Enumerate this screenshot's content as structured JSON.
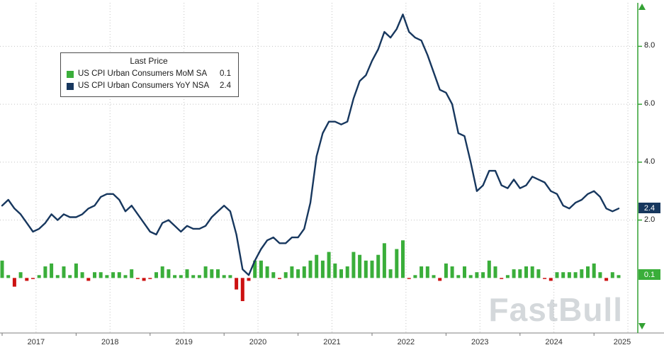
{
  "chart": {
    "legend": {
      "title": "Last Price",
      "entries": [
        {
          "label": "US CPI Urban Consumers MoM SA",
          "value": "0.1",
          "color": "#3aae3a"
        },
        {
          "label": "US CPI Urban Consumers YoY NSA",
          "value": "2.4",
          "color": "#17375e"
        }
      ]
    },
    "last_price_tags": [
      {
        "value": "2.4",
        "bg": "#17375e"
      },
      {
        "value": "0.1",
        "bg": "#3aae3a"
      }
    ],
    "watermark": "FastBull"
  },
  "chart_data": {
    "type": "mixed",
    "x_start": "2017-01",
    "x_freq": "monthly",
    "x_tick_labels": [
      "2017",
      "2018",
      "2019",
      "2020",
      "2021",
      "2022",
      "2023",
      "2024",
      "2025"
    ],
    "y_ticks": [
      "2.0",
      "4.0",
      "6.0",
      "8.0"
    ],
    "ylim": [
      -1.9,
      9.6
    ],
    "grid": "dotted",
    "grid_color": "#c4c4c4",
    "axis_color": "#33a133",
    "legend_position": "top-left",
    "series": [
      {
        "name": "US CPI Urban Consumers MoM SA",
        "type": "bar",
        "last": 0.1,
        "color": "#3aae3a",
        "negative_color": "#cc1111",
        "values": [
          0.6,
          0.1,
          -0.3,
          0.2,
          -0.1,
          0.0,
          0.1,
          0.4,
          0.5,
          0.1,
          0.4,
          0.1,
          0.5,
          0.2,
          -0.1,
          0.2,
          0.2,
          0.1,
          0.2,
          0.2,
          0.1,
          0.3,
          0.0,
          -0.1,
          0.0,
          0.2,
          0.4,
          0.3,
          0.1,
          0.1,
          0.3,
          0.1,
          0.1,
          0.4,
          0.3,
          0.3,
          0.1,
          0.1,
          -0.4,
          -0.8,
          -0.1,
          0.6,
          0.6,
          0.4,
          0.2,
          0.0,
          0.2,
          0.4,
          0.3,
          0.4,
          0.6,
          0.8,
          0.6,
          0.9,
          0.5,
          0.3,
          0.4,
          0.9,
          0.8,
          0.6,
          0.6,
          0.8,
          1.2,
          0.3,
          1.0,
          1.3,
          0.0,
          0.1,
          0.4,
          0.4,
          0.1,
          -0.1,
          0.5,
          0.4,
          0.1,
          0.4,
          0.1,
          0.2,
          0.2,
          0.6,
          0.4,
          0.0,
          0.1,
          0.3,
          0.3,
          0.4,
          0.4,
          0.3,
          0.0,
          -0.1,
          0.2,
          0.2,
          0.2,
          0.2,
          0.3,
          0.4,
          0.5,
          0.2,
          -0.1,
          0.2,
          0.1
        ]
      },
      {
        "name": "US CPI Urban Consumers YoY NSA",
        "type": "line",
        "last": 2.4,
        "color": "#17375e",
        "values": [
          2.5,
          2.7,
          2.4,
          2.2,
          1.9,
          1.6,
          1.7,
          1.9,
          2.2,
          2.0,
          2.2,
          2.1,
          2.1,
          2.2,
          2.4,
          2.5,
          2.8,
          2.9,
          2.9,
          2.7,
          2.3,
          2.5,
          2.2,
          1.9,
          1.6,
          1.5,
          1.9,
          2.0,
          1.8,
          1.6,
          1.8,
          1.7,
          1.7,
          1.8,
          2.1,
          2.3,
          2.5,
          2.3,
          1.5,
          0.3,
          0.1,
          0.6,
          1.0,
          1.3,
          1.4,
          1.2,
          1.2,
          1.4,
          1.4,
          1.7,
          2.6,
          4.2,
          5.0,
          5.4,
          5.4,
          5.3,
          5.4,
          6.2,
          6.8,
          7.0,
          7.5,
          7.9,
          8.5,
          8.3,
          8.6,
          9.1,
          8.5,
          8.3,
          8.2,
          7.7,
          7.1,
          6.5,
          6.4,
          6.0,
          5.0,
          4.9,
          4.0,
          3.0,
          3.2,
          3.7,
          3.7,
          3.2,
          3.1,
          3.4,
          3.1,
          3.2,
          3.5,
          3.4,
          3.3,
          3.0,
          2.9,
          2.5,
          2.4,
          2.6,
          2.7,
          2.9,
          3.0,
          2.8,
          2.4,
          2.3,
          2.4
        ]
      }
    ]
  }
}
